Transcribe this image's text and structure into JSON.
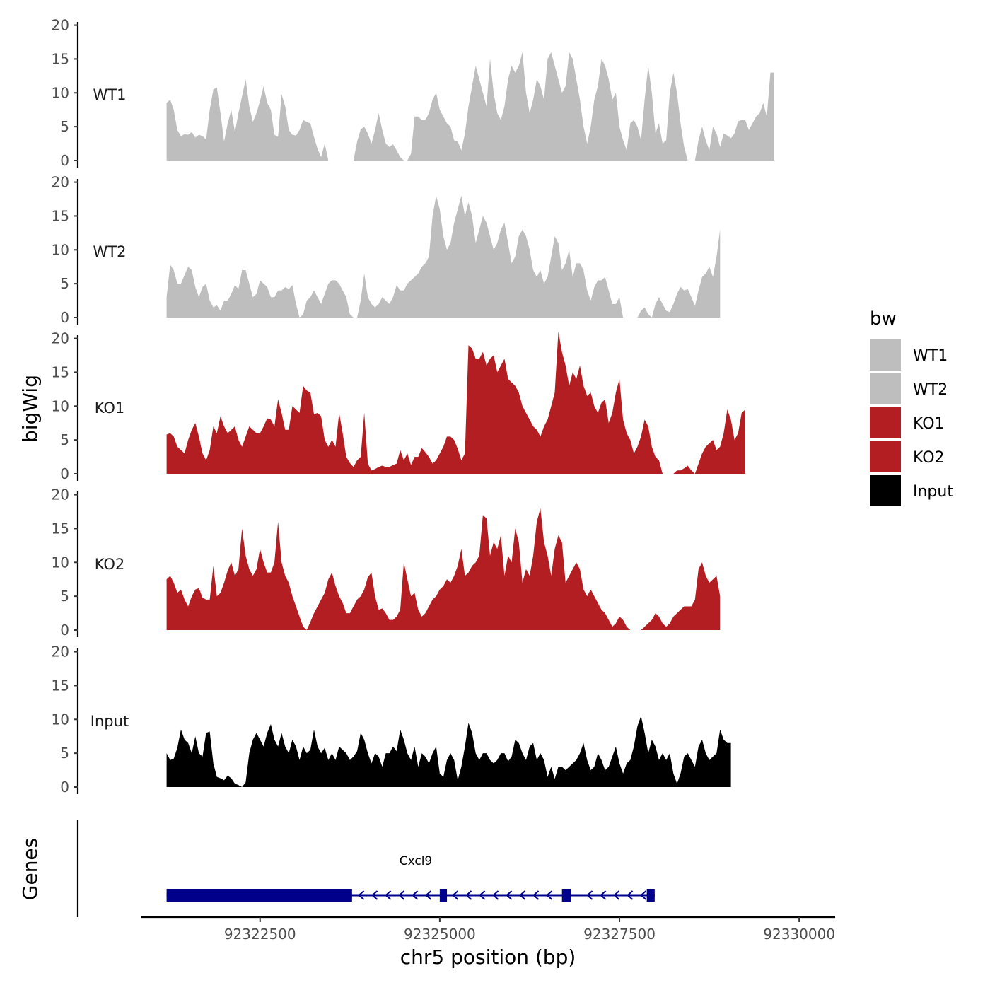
{
  "chart_data": {
    "type": "area",
    "xlabel": "chr5 position (bp)",
    "ylabel": "bigWig",
    "genes_label": "Genes",
    "legend_title": "bw",
    "xlim": [
      92320850,
      92330500
    ],
    "x_ticks": [
      92322500,
      92325000,
      92327500,
      92330000
    ],
    "x_tick_labels": [
      "92322500",
      "92325000",
      "92327500",
      "92330000"
    ],
    "ylim": [
      0,
      21
    ],
    "y_ticks": [
      0,
      5,
      10,
      15,
      20
    ],
    "y_tick_labels": [
      "0",
      "5",
      "10",
      "15",
      "20"
    ],
    "x_start": 92321200,
    "x_step": 50,
    "series": [
      {
        "name": "WT1",
        "color": "#bebebe",
        "values": [
          8.5,
          9,
          7.5,
          4.5,
          3.6,
          3.9,
          3.8,
          4.2,
          3.4,
          3.8,
          3.6,
          3.1,
          7.5,
          10.5,
          10.8,
          7,
          2.8,
          5.5,
          7.5,
          4.2,
          7,
          9.5,
          12,
          8,
          5.7,
          7,
          8.8,
          11,
          8.5,
          7.5,
          3.8,
          3.5,
          9.8,
          8,
          4.5,
          3.8,
          3.7,
          4.5,
          6,
          5.7,
          5.5,
          3.5,
          1.7,
          0.5,
          2.5,
          0,
          0,
          0,
          0,
          0,
          0,
          0,
          0,
          2.8,
          4.6,
          5,
          4,
          2.5,
          4.5,
          7,
          4.5,
          2.5,
          2,
          2.4,
          1.5,
          0.5,
          0,
          0,
          1,
          6.5,
          6.5,
          6,
          6,
          7,
          9,
          10,
          7.5,
          6.5,
          5.5,
          5,
          3,
          2.8,
          1.5,
          4,
          8,
          11,
          14,
          12,
          10,
          8,
          15,
          10,
          7,
          6,
          8,
          12,
          14,
          13,
          14,
          16,
          10,
          7,
          9,
          12,
          11,
          9,
          15,
          16,
          14,
          12,
          10,
          11,
          16,
          15,
          12,
          9,
          5,
          2.5,
          5,
          9,
          11,
          15,
          14,
          12,
          9,
          10,
          5,
          3,
          1.5,
          5.5,
          6,
          5,
          3,
          9,
          14,
          10,
          4,
          5.5,
          2.5,
          3,
          10,
          13,
          10,
          5.5,
          2,
          0,
          0,
          0,
          3,
          5,
          3,
          1.5,
          5,
          4,
          2,
          4,
          3.7,
          3.3,
          4,
          5.8,
          6,
          6,
          4.5,
          5.5,
          6.5,
          7,
          8.5,
          6.5,
          13,
          13
        ]
      },
      {
        "name": "WT2",
        "color": "#bebebe",
        "values": [
          3,
          7.8,
          7,
          5,
          5,
          6.3,
          7.5,
          7,
          4.5,
          3,
          4.5,
          5,
          2.5,
          1.5,
          1.8,
          1,
          2.5,
          2.5,
          3.5,
          4.8,
          4.2,
          7,
          7,
          5,
          3,
          3.5,
          5.5,
          5,
          4.5,
          3,
          3,
          4,
          4,
          4.5,
          4.2,
          4.8,
          2,
          0,
          0.5,
          2.5,
          3,
          4,
          3,
          2,
          3.5,
          5,
          5.5,
          5.5,
          5,
          4,
          3,
          0.5,
          0,
          0,
          2.5,
          6.5,
          3,
          2,
          1.5,
          2,
          3,
          2.5,
          2,
          3,
          4.8,
          4,
          4,
          5,
          5.5,
          6,
          6.5,
          7.5,
          8,
          9,
          15,
          18,
          16,
          12,
          10,
          11,
          14,
          16,
          18,
          15,
          17,
          15,
          11,
          13,
          15,
          14,
          12,
          10,
          11,
          13,
          14,
          11,
          8,
          9,
          12,
          13,
          12,
          10,
          7,
          6,
          7,
          5,
          6,
          9,
          12,
          11,
          7,
          8,
          10,
          6,
          8,
          8,
          7,
          4,
          2.5,
          4.5,
          5.5,
          5.5,
          6,
          4,
          2,
          2,
          3,
          0,
          0,
          0,
          0,
          0,
          1,
          1.5,
          0.5,
          0,
          2,
          3,
          2,
          1,
          0.8,
          2,
          3.5,
          4.5,
          4,
          4.2,
          3,
          1.7,
          4,
          6,
          6.5,
          7.5,
          6,
          9,
          13
        ]
      },
      {
        "name": "KO1",
        "color": "#b21e21",
        "values": [
          5.8,
          6,
          5.5,
          4,
          3.5,
          3,
          5,
          6.5,
          7.5,
          5.5,
          3,
          2,
          3.5,
          7,
          6,
          8.5,
          7,
          6,
          6.5,
          7,
          5,
          4,
          5.5,
          7,
          6.5,
          6,
          6,
          7,
          8.2,
          8,
          7,
          11,
          9,
          6.5,
          6.5,
          10,
          9.5,
          9,
          13,
          12.3,
          12,
          8.8,
          9,
          8.5,
          5,
          4,
          5,
          4,
          9,
          6,
          2.5,
          1.6,
          1,
          2,
          2.5,
          9,
          1.5,
          0.5,
          0.7,
          1,
          1.2,
          1,
          1,
          1.3,
          1.5,
          3.5,
          2,
          3,
          1.3,
          2.5,
          2.5,
          3.8,
          3.2,
          2.5,
          1.5,
          2,
          3,
          4,
          5.5,
          5.5,
          5,
          3.7,
          2,
          3,
          19,
          18.5,
          17,
          17,
          18,
          16,
          17,
          17.5,
          15,
          16,
          17,
          14,
          13.5,
          13,
          12,
          10,
          9,
          8,
          7,
          6.5,
          5.5,
          7,
          8,
          10,
          12,
          21,
          18,
          16,
          13,
          15,
          14,
          16,
          13,
          11.5,
          12,
          10,
          9,
          10.5,
          11,
          7.5,
          9,
          12,
          14,
          8,
          6,
          5,
          3,
          4,
          5.5,
          8,
          7,
          4,
          2.5,
          2,
          0,
          0,
          0,
          0,
          0.5,
          0.5,
          0.8,
          1.2,
          0.5,
          0,
          1.5,
          3,
          4,
          4.5,
          5,
          3.5,
          4,
          6,
          9.5,
          8,
          5,
          6,
          9,
          9.5
        ]
      },
      {
        "name": "KO2",
        "color": "#b21e21",
        "values": [
          7.5,
          8,
          7,
          5.5,
          6,
          4.5,
          3.5,
          5,
          6,
          6.2,
          4.8,
          4.5,
          4.5,
          9.5,
          5,
          5.5,
          7,
          8.8,
          10,
          8,
          9,
          15,
          11,
          9,
          8,
          9,
          12,
          10,
          8.5,
          8.5,
          10,
          16,
          10,
          8,
          7,
          5,
          3.5,
          2,
          0.5,
          0,
          1.2,
          2.5,
          3.5,
          4.5,
          5.5,
          7.5,
          8.5,
          6.5,
          5,
          4,
          2.5,
          2.5,
          3.5,
          4.5,
          5,
          6,
          7.8,
          8.5,
          5,
          3,
          3.2,
          2.5,
          1.5,
          1.5,
          2,
          3,
          10,
          7.5,
          5,
          5.5,
          3,
          2,
          2.5,
          3.5,
          4.5,
          5,
          6,
          6.5,
          7.5,
          7,
          8,
          9.5,
          12,
          8,
          8.5,
          9.5,
          10,
          11,
          17,
          16.5,
          11,
          13,
          12,
          14,
          8,
          11,
          10,
          15,
          13,
          7,
          9,
          8,
          11,
          16,
          18,
          13,
          11,
          8,
          12,
          14,
          13,
          7,
          8,
          9,
          10,
          9,
          6,
          5,
          6,
          5,
          4,
          3,
          2.5,
          1.5,
          0.5,
          1,
          2,
          1.5,
          0.5,
          0,
          0,
          0,
          0,
          0.5,
          1,
          1.5,
          2.5,
          2,
          1,
          0.5,
          1,
          2,
          2.5,
          3,
          3.5,
          3.5,
          3.5,
          4.5,
          9,
          10,
          8,
          7,
          7.5,
          8,
          5
        ]
      },
      {
        "name": "Input",
        "color": "#000000",
        "values": [
          5,
          4,
          4.2,
          5.8,
          8.5,
          7,
          6.5,
          5,
          7.5,
          5,
          4.5,
          8,
          8.2,
          3.5,
          1.5,
          1.3,
          1,
          1.7,
          1.3,
          0.5,
          0.3,
          0,
          0.7,
          5,
          7,
          8,
          7,
          6,
          8,
          9.3,
          7,
          6,
          8,
          6,
          5,
          7,
          6,
          4,
          6,
          5,
          5.5,
          8.5,
          6,
          5,
          5.8,
          4,
          5,
          4,
          6,
          5.5,
          5,
          4,
          4.5,
          5.3,
          8,
          7,
          5,
          3.5,
          5,
          4.5,
          3,
          5,
          5,
          6,
          5.3,
          8.5,
          7,
          5,
          4,
          6,
          3,
          5,
          4.5,
          3.5,
          5,
          6,
          2,
          1.5,
          4,
          5,
          4,
          1,
          3,
          6,
          9.5,
          8,
          5,
          4,
          5,
          5,
          4,
          3.5,
          4,
          5,
          5,
          3.8,
          4.5,
          7,
          6.5,
          5,
          4,
          6,
          6.5,
          4,
          5,
          4,
          1.5,
          3,
          1.2,
          3,
          3,
          2.5,
          3,
          3.5,
          4,
          5,
          6.5,
          4,
          2.5,
          3,
          5,
          4,
          2.5,
          3,
          4.5,
          6,
          3.5,
          2,
          3.5,
          4,
          6,
          9,
          10.5,
          8,
          5,
          7,
          6,
          4,
          5,
          4,
          5,
          2,
          0.5,
          2,
          4.5,
          5,
          4,
          3,
          6,
          7,
          5,
          4,
          4.5,
          5,
          8.5,
          7,
          6.5,
          6.5
        ]
      }
    ],
    "gene": {
      "name": "Cxcl9",
      "strand": "-",
      "color": "#00008b",
      "start": 92321200,
      "end": 92327990,
      "exons": [
        [
          92321200,
          92323780
        ],
        [
          92325000,
          92325100
        ],
        [
          92326700,
          92326830
        ],
        [
          92327880,
          92327990
        ]
      ]
    },
    "legend": [
      {
        "label": "WT1",
        "color": "#bebebe"
      },
      {
        "label": "WT2",
        "color": "#bebebe"
      },
      {
        "label": "KO1",
        "color": "#b21e21"
      },
      {
        "label": "KO2",
        "color": "#b21e21"
      },
      {
        "label": "Input",
        "color": "#000000"
      }
    ]
  }
}
